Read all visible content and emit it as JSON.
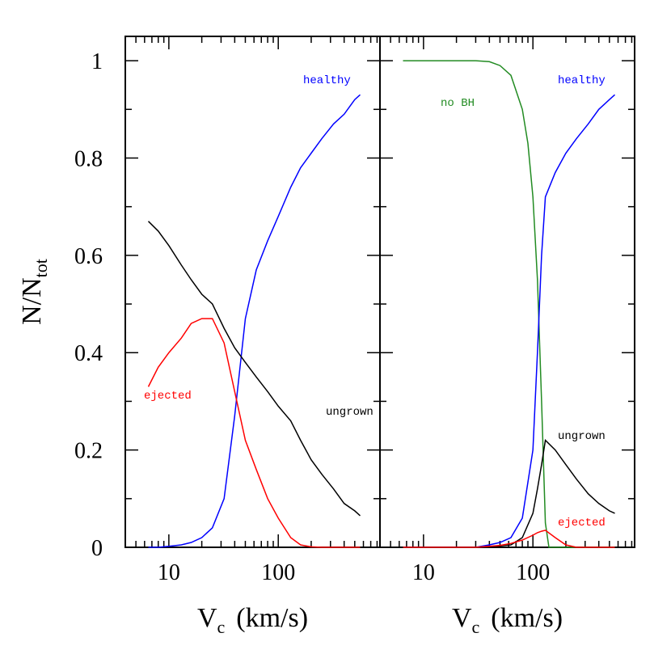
{
  "chart_data": [
    {
      "type": "line",
      "xscale": "log",
      "xlabel": {
        "text": "V",
        "sub": "c",
        "unit": "(km/s)"
      },
      "ylabel": {
        "text": "N/N",
        "sub": "tot"
      },
      "xlim": [
        4,
        850
      ],
      "ylim": [
        0,
        1.05
      ],
      "xticks": [
        10,
        100
      ],
      "xminorticks": [
        5,
        6,
        7,
        8,
        9,
        20,
        30,
        40,
        50,
        60,
        70,
        80,
        90,
        200,
        300,
        400,
        500,
        600,
        700,
        800
      ],
      "yticks": [
        0,
        0.2,
        0.4,
        0.6,
        0.8,
        1
      ],
      "yminorticks": [
        0.1,
        0.3,
        0.5,
        0.7,
        0.9
      ],
      "show_yticklabels": true,
      "series": [
        {
          "name": "healthy",
          "color": "#0000ff",
          "x": [
            6.5,
            8,
            10,
            13,
            16,
            20,
            25,
            32,
            40,
            50,
            63,
            80,
            100,
            130,
            160,
            200,
            250,
            320,
            400,
            500,
            560
          ],
          "values": [
            0,
            0,
            0.002,
            0.005,
            0.01,
            0.02,
            0.04,
            0.1,
            0.27,
            0.47,
            0.57,
            0.63,
            0.68,
            0.74,
            0.78,
            0.81,
            0.84,
            0.87,
            0.89,
            0.92,
            0.93
          ]
        },
        {
          "name": "ungrown",
          "color": "#000000",
          "x": [
            6.5,
            8,
            10,
            13,
            16,
            20,
            25,
            32,
            40,
            50,
            63,
            80,
            100,
            130,
            160,
            200,
            250,
            320,
            400,
            500,
            560
          ],
          "values": [
            0.67,
            0.65,
            0.62,
            0.58,
            0.55,
            0.52,
            0.5,
            0.45,
            0.41,
            0.38,
            0.35,
            0.32,
            0.29,
            0.26,
            0.22,
            0.18,
            0.15,
            0.12,
            0.09,
            0.075,
            0.065
          ]
        },
        {
          "name": "ejected",
          "color": "#ff0000",
          "x": [
            6.5,
            8,
            10,
            13,
            16,
            20,
            25,
            32,
            40,
            50,
            63,
            80,
            100,
            130,
            160,
            200,
            250,
            320,
            400,
            500,
            560
          ],
          "values": [
            0.33,
            0.37,
            0.4,
            0.43,
            0.46,
            0.47,
            0.47,
            0.42,
            0.32,
            0.22,
            0.16,
            0.1,
            0.06,
            0.02,
            0.005,
            0.001,
            0,
            0,
            0,
            0,
            0
          ]
        }
      ]
    },
    {
      "type": "line",
      "xscale": "log",
      "xlabel": {
        "text": "V",
        "sub": "c",
        "unit": "(km/s)"
      },
      "xlim": [
        4,
        850
      ],
      "ylim": [
        0,
        1.05
      ],
      "xticks": [
        10,
        100
      ],
      "xminorticks": [
        5,
        6,
        7,
        8,
        9,
        20,
        30,
        40,
        50,
        60,
        70,
        80,
        90,
        200,
        300,
        400,
        500,
        600,
        700,
        800
      ],
      "yticks": [
        0,
        0.2,
        0.4,
        0.6,
        0.8,
        1
      ],
      "yminorticks": [
        0.1,
        0.3,
        0.5,
        0.7,
        0.9
      ],
      "show_yticklabels": false,
      "series": [
        {
          "name": "no BH",
          "color": "#228b22",
          "x": [
            6.5,
            10,
            20,
            30,
            40,
            50,
            63,
            80,
            90,
            100,
            110,
            120,
            130,
            140,
            160,
            200,
            560
          ],
          "values": [
            1,
            1,
            1,
            1,
            0.998,
            0.99,
            0.97,
            0.9,
            0.83,
            0.72,
            0.55,
            0.3,
            0.05,
            0,
            0,
            0,
            0
          ]
        },
        {
          "name": "healthy",
          "color": "#0000ff",
          "x": [
            6.5,
            10,
            20,
            30,
            40,
            50,
            63,
            80,
            100,
            110,
            120,
            130,
            160,
            200,
            250,
            320,
            400,
            500,
            560
          ],
          "values": [
            0,
            0,
            0,
            0,
            0.005,
            0.01,
            0.02,
            0.06,
            0.2,
            0.4,
            0.6,
            0.72,
            0.77,
            0.81,
            0.84,
            0.87,
            0.9,
            0.92,
            0.93
          ]
        },
        {
          "name": "ungrown",
          "color": "#000000",
          "x": [
            6.5,
            10,
            20,
            30,
            40,
            50,
            63,
            80,
            100,
            110,
            120,
            130,
            160,
            200,
            250,
            320,
            400,
            500,
            560
          ],
          "values": [
            0,
            0,
            0,
            0,
            0.002,
            0.003,
            0.005,
            0.02,
            0.07,
            0.12,
            0.17,
            0.22,
            0.2,
            0.17,
            0.14,
            0.11,
            0.09,
            0.075,
            0.07
          ]
        },
        {
          "name": "ejected",
          "color": "#ff0000",
          "x": [
            6.5,
            10,
            20,
            30,
            40,
            50,
            63,
            80,
            100,
            110,
            120,
            130,
            160,
            200,
            250,
            320,
            400,
            500,
            560
          ],
          "values": [
            0,
            0,
            0,
            0,
            0.002,
            0.004,
            0.008,
            0.015,
            0.025,
            0.03,
            0.033,
            0.035,
            0.02,
            0.005,
            0,
            0,
            0,
            0,
            0
          ]
        }
      ]
    }
  ]
}
